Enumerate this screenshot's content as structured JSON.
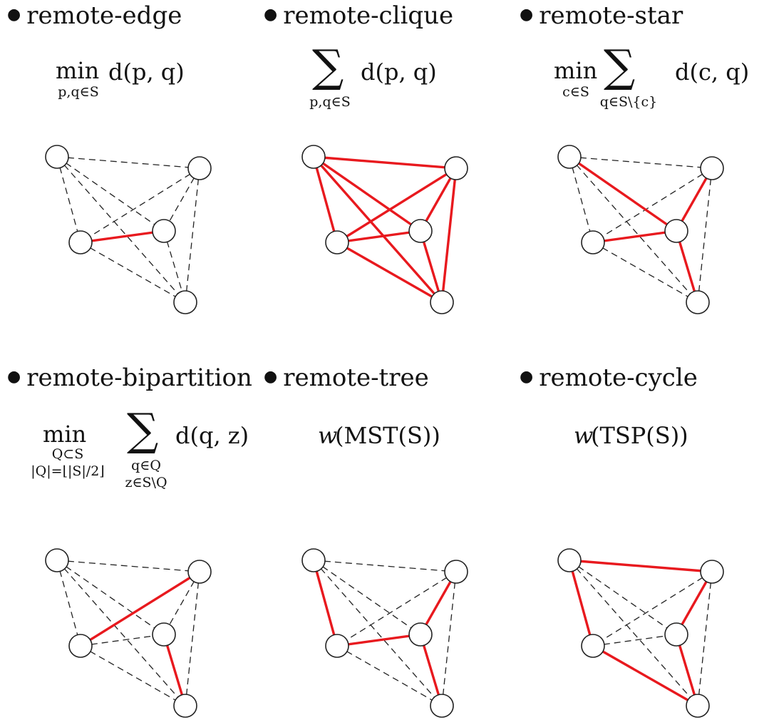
{
  "panels": [
    {
      "id": "remote-edge",
      "title": "remote-edge",
      "formula": {
        "op": "min",
        "op_sub": "p,q∈S",
        "expr": "d(p, q)"
      },
      "red_edges": [
        [
          2,
          3
        ]
      ]
    },
    {
      "id": "remote-clique",
      "title": "remote-clique",
      "formula": {
        "sigma": "∑",
        "sigma_sub": "p,q∈S",
        "expr": "d(p, q)"
      },
      "red_edges": [
        [
          0,
          1
        ],
        [
          0,
          2
        ],
        [
          0,
          3
        ],
        [
          0,
          4
        ],
        [
          1,
          2
        ],
        [
          1,
          3
        ],
        [
          1,
          4
        ],
        [
          2,
          3
        ],
        [
          2,
          4
        ],
        [
          3,
          4
        ]
      ]
    },
    {
      "id": "remote-star",
      "title": "remote-star",
      "formula": {
        "op": "min",
        "op_sub": "c∈S",
        "sigma": "∑",
        "sigma_sub": "q∈S\\{c}",
        "expr": "d(c, q)"
      },
      "red_edges": [
        [
          0,
          3
        ],
        [
          1,
          3
        ],
        [
          2,
          3
        ],
        [
          3,
          4
        ]
      ]
    },
    {
      "id": "remote-bipartition",
      "title": "remote-bipartition",
      "formula": {
        "op": "min",
        "op_sub": "Q⊂S",
        "op_sub2": "|Q|=⌊|S|/2⌋",
        "sigma": "∑",
        "sigma_sub": "q∈Q",
        "sigma_sub2": "z∈S\\Q",
        "expr": "d(q, z)"
      },
      "red_edges": [
        [
          1,
          2
        ],
        [
          3,
          4
        ]
      ]
    },
    {
      "id": "remote-tree",
      "title": "remote-tree",
      "formula": {
        "w": "w",
        "expr": "(MST(S))"
      },
      "red_edges": [
        [
          0,
          2
        ],
        [
          2,
          3
        ],
        [
          1,
          3
        ],
        [
          3,
          4
        ]
      ]
    },
    {
      "id": "remote-cycle",
      "title": "remote-cycle",
      "formula": {
        "w": "w",
        "expr": "(TSP(S))"
      },
      "red_edges": [
        [
          0,
          1
        ],
        [
          1,
          3
        ],
        [
          3,
          4
        ],
        [
          4,
          2
        ],
        [
          2,
          0
        ]
      ]
    }
  ]
}
